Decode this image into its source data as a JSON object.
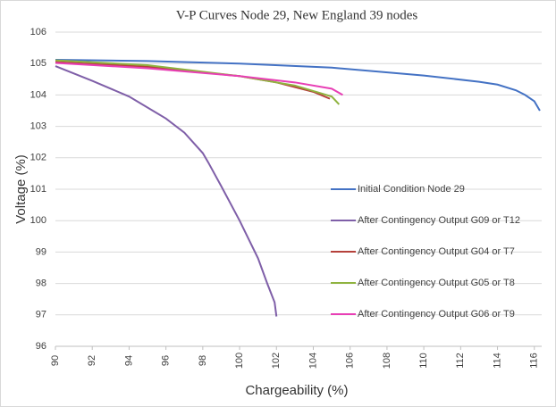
{
  "chart_data": {
    "type": "line",
    "title": "V-P Curves Node 29, New England 39 nodes",
    "x_label": "Chargeability (%)",
    "y_label": "Voltage (%)",
    "xlim": [
      90,
      116.4
    ],
    "ylim": [
      96,
      106
    ],
    "xticks": [
      90,
      92,
      94,
      96,
      98,
      100,
      102,
      104,
      106,
      108,
      110,
      112,
      114,
      116
    ],
    "yticks": [
      96,
      97,
      98,
      99,
      100,
      101,
      102,
      103,
      104,
      105,
      106
    ],
    "grid": true,
    "series": [
      {
        "name": "Initial Condition Node 29",
        "color": "#4472c4",
        "x": [
          90,
          95,
          100,
          105,
          110,
          113,
          114,
          115,
          115.5,
          116,
          116.3
        ],
        "values": [
          105.12,
          105.08,
          105.0,
          104.87,
          104.62,
          104.42,
          104.33,
          104.15,
          104.0,
          103.8,
          103.5
        ]
      },
      {
        "name": "After Contingency Output G09 or T12",
        "color": "#7f5fa8",
        "x": [
          90,
          92,
          94,
          96,
          97,
          98,
          98.3,
          99,
          100,
          101,
          101.5,
          101.9,
          102
        ],
        "values": [
          104.92,
          104.45,
          103.95,
          103.25,
          102.8,
          102.15,
          101.85,
          101.1,
          100.0,
          98.8,
          98.0,
          97.4,
          96.95
        ]
      },
      {
        "name": "After Contingency Output G04 or T7",
        "color": "#b5413b",
        "x": [
          90,
          95,
          100,
          102,
          104,
          104.9
        ],
        "values": [
          105.05,
          104.9,
          104.6,
          104.4,
          104.1,
          103.88
        ]
      },
      {
        "name": "After Contingency Output G05 or T8",
        "color": "#8fb33f",
        "x": [
          90,
          95,
          100,
          103,
          105,
          105.4
        ],
        "values": [
          105.1,
          104.95,
          104.6,
          104.3,
          103.95,
          103.7
        ]
      },
      {
        "name": "After Contingency Output G06 or T9",
        "color": "#e83fb5",
        "x": [
          90,
          95,
          100,
          103,
          105,
          105.6
        ],
        "values": [
          105.02,
          104.85,
          104.6,
          104.4,
          104.2,
          104.0
        ]
      }
    ]
  }
}
